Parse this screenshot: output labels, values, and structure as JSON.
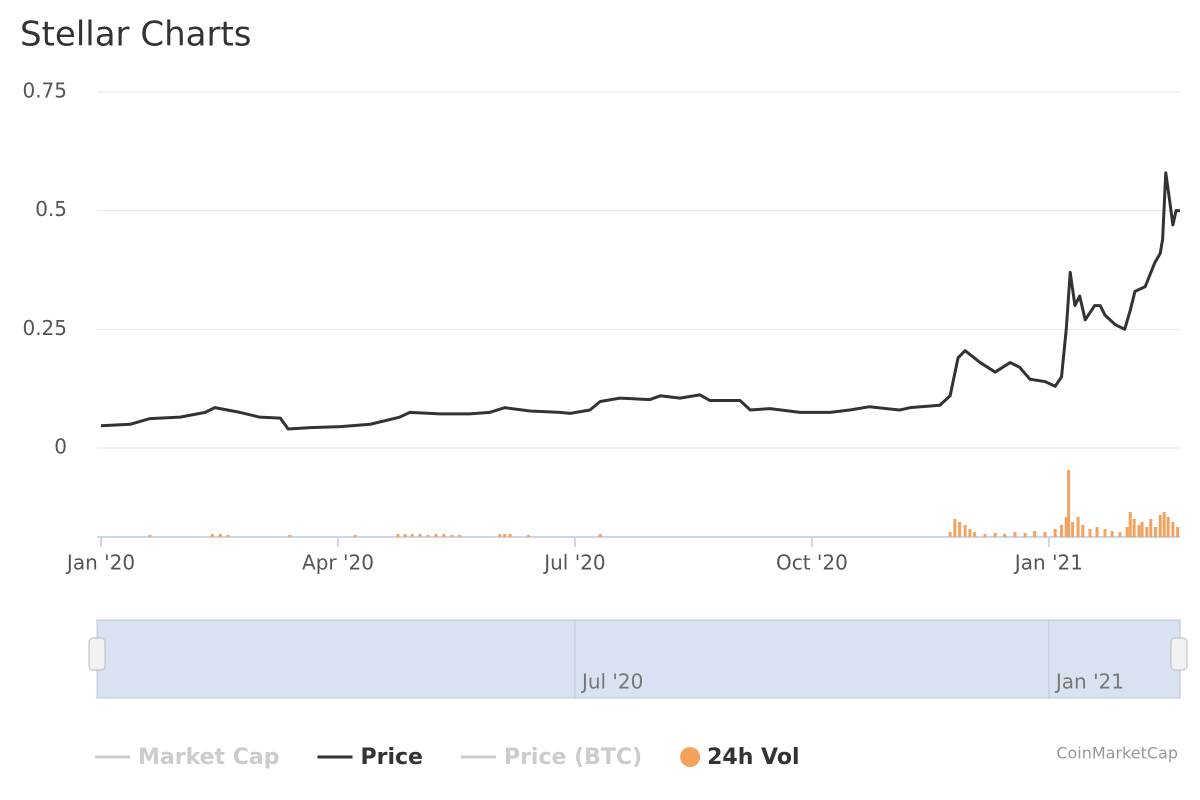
{
  "chart_data": {
    "type": "line",
    "title": "Stellar Charts",
    "xlim": [
      0,
      13.66
    ],
    "xticks": [
      {
        "value": 0,
        "label": "Jan '20"
      },
      {
        "value": 3,
        "label": "Apr '20"
      },
      {
        "value": 6,
        "label": "Jul '20"
      },
      {
        "value": 9,
        "label": "Oct '20"
      },
      {
        "value": 12,
        "label": "Jan '21"
      }
    ],
    "ylim": [
      0,
      0.75
    ],
    "yticks": [
      0,
      0.25,
      0.5,
      0.75
    ],
    "grid": true,
    "y2lim": [
      0,
      70
    ],
    "navigator_ticks": [
      {
        "value": 6,
        "label": "Jul '20"
      },
      {
        "value": 12,
        "label": "Jan '21"
      }
    ],
    "series": [
      {
        "name": "Market Cap",
        "color": "#cccccc",
        "visible": false
      },
      {
        "name": "Price",
        "color": "#333333",
        "visible": true,
        "x": [
          0,
          0.37,
          0.62,
          1.0,
          1.32,
          1.44,
          1.76,
          2.01,
          2.27,
          2.37,
          2.65,
          3.03,
          3.41,
          3.78,
          3.91,
          4.29,
          4.67,
          4.92,
          5.11,
          5.43,
          5.81,
          5.94,
          6.19,
          6.32,
          6.57,
          6.95,
          7.08,
          7.33,
          7.58,
          7.71,
          8.09,
          8.22,
          8.47,
          8.85,
          9.23,
          9.48,
          9.73,
          10.11,
          10.24,
          10.62,
          10.75,
          10.85,
          10.94,
          11.13,
          11.32,
          11.51,
          11.63,
          11.76,
          11.95,
          12.08,
          12.16,
          12.22,
          12.27,
          12.33,
          12.39,
          12.46,
          12.58,
          12.65,
          12.71,
          12.84,
          12.96,
          13.03,
          13.09,
          13.22,
          13.34,
          13.41,
          13.44,
          13.48,
          13.53,
          13.57,
          13.61,
          13.66
        ],
        "values": [
          0.047,
          0.05,
          0.062,
          0.065,
          0.075,
          0.085,
          0.075,
          0.065,
          0.063,
          0.04,
          0.043,
          0.045,
          0.05,
          0.065,
          0.075,
          0.072,
          0.072,
          0.075,
          0.085,
          0.078,
          0.075,
          0.073,
          0.08,
          0.098,
          0.105,
          0.102,
          0.11,
          0.105,
          0.112,
          0.1,
          0.1,
          0.08,
          0.083,
          0.075,
          0.075,
          0.08,
          0.087,
          0.08,
          0.085,
          0.09,
          0.11,
          0.19,
          0.205,
          0.18,
          0.16,
          0.18,
          0.17,
          0.145,
          0.14,
          0.13,
          0.15,
          0.25,
          0.37,
          0.3,
          0.32,
          0.27,
          0.3,
          0.3,
          0.28,
          0.26,
          0.25,
          0.29,
          0.33,
          0.34,
          0.39,
          0.41,
          0.44,
          0.58,
          0.52,
          0.47,
          0.5,
          0.5
        ]
      },
      {
        "name": "Price (BTC)",
        "color": "#cccccc",
        "visible": false
      },
      {
        "name": "24h Vol",
        "color": "#f4a35e",
        "visible": true,
        "axis": "y2",
        "x": [
          0.62,
          1.41,
          1.51,
          1.61,
          2.39,
          3.22,
          3.76,
          3.85,
          3.94,
          4.04,
          4.14,
          4.24,
          4.34,
          4.44,
          4.54,
          5.05,
          5.11,
          5.18,
          5.41,
          6.32,
          10.75,
          10.81,
          10.87,
          10.94,
          11.0,
          11.06,
          11.19,
          11.32,
          11.44,
          11.57,
          11.7,
          11.82,
          11.95,
          12.08,
          12.16,
          12.22,
          12.25,
          12.3,
          12.37,
          12.43,
          12.52,
          12.61,
          12.71,
          12.8,
          12.9,
          12.99,
          13.03,
          13.08,
          13.14,
          13.18,
          13.24,
          13.29,
          13.35,
          13.41,
          13.46,
          13.51,
          13.57,
          13.63
        ],
        "values": [
          2,
          3,
          3,
          2,
          2,
          2,
          3,
          3,
          3,
          3,
          2,
          3,
          3,
          2,
          2,
          3,
          3,
          3,
          2,
          3,
          5,
          18,
          15,
          12,
          8,
          5,
          3,
          4,
          3,
          5,
          4,
          6,
          5,
          8,
          12,
          20,
          67,
          15,
          20,
          12,
          8,
          10,
          8,
          6,
          5,
          10,
          25,
          18,
          12,
          15,
          10,
          18,
          10,
          22,
          25,
          20,
          15,
          10
        ]
      }
    ],
    "credit": "CoinMarketCap"
  }
}
